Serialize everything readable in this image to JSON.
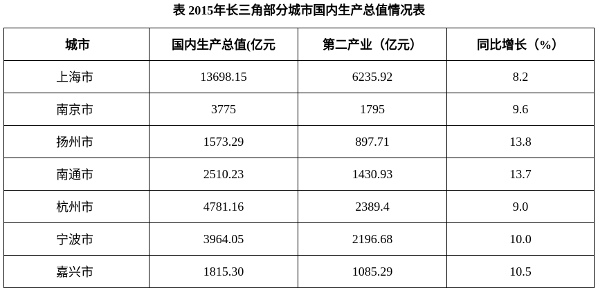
{
  "header": {
    "title": "表 2015年长三角部分城市国内生产总值情况表"
  },
  "table": {
    "columns": [
      "城市",
      "国内生产总值(亿元",
      "第二产业（亿元）",
      "同比增长（%）"
    ],
    "rows": [
      [
        "上海市",
        "13698.15",
        "6235.92",
        "8.2"
      ],
      [
        "南京市",
        "3775",
        "1795",
        "9.6"
      ],
      [
        "扬州市",
        "1573.29",
        "897.71",
        "13.8"
      ],
      [
        "南通市",
        "2510.23",
        "1430.93",
        "13.7"
      ],
      [
        "杭州市",
        "4781.16",
        "2389.4",
        "9.0"
      ],
      [
        "宁波市",
        "3964.05",
        "2196.68",
        "10.0"
      ],
      [
        "嘉兴市",
        "1815.30",
        "1085.29",
        "10.5"
      ]
    ]
  }
}
